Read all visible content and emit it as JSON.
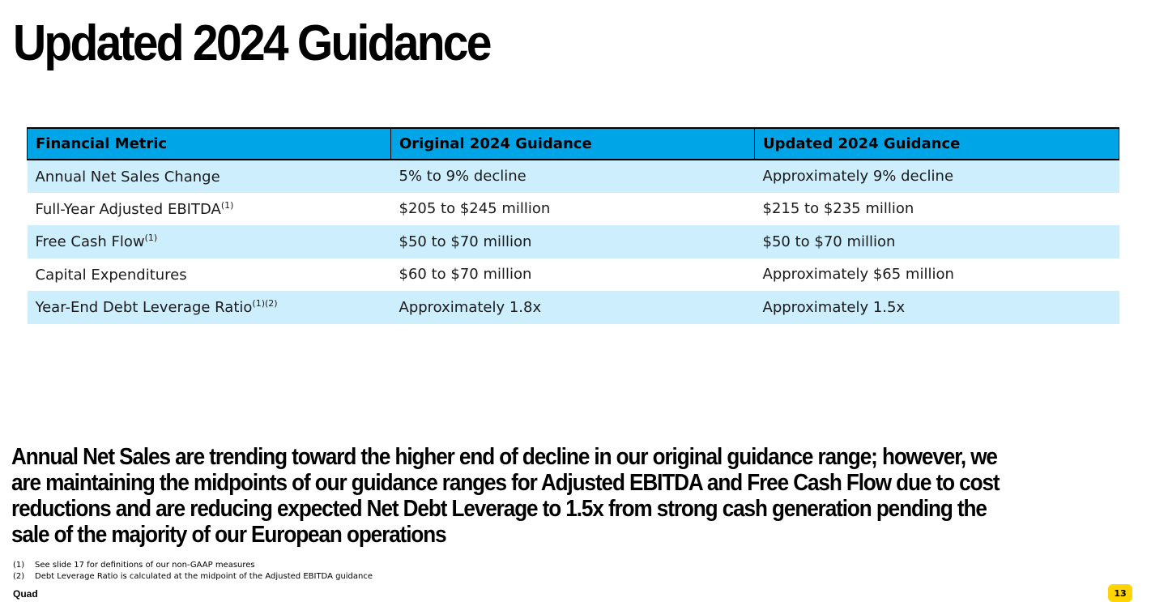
{
  "slide": {
    "title": "Updated 2024 Guidance",
    "page_number": "13",
    "brand": "Quad"
  },
  "table": {
    "headers": [
      "Financial Metric",
      "Original 2024 Guidance",
      "Updated 2024 Guidance"
    ],
    "rows": [
      {
        "metric": "Annual Net Sales Change",
        "sup": "",
        "original": "5% to 9% decline",
        "updated": "Approximately 9% decline"
      },
      {
        "metric": "Full-Year Adjusted EBITDA",
        "sup": "(1)",
        "original": "$205 to $245 million",
        "updated": "$215 to $235 million"
      },
      {
        "metric": "Free Cash Flow",
        "sup": "(1)",
        "original": "$50 to $70 million",
        "updated": "$50 to $70 million"
      },
      {
        "metric": "Capital Expenditures",
        "sup": "",
        "original": "$60 to $70 million",
        "updated": "Approximately $65 million"
      },
      {
        "metric": "Year-End Debt Leverage Ratio",
        "sup": "(1)(2)",
        "original": "Approximately 1.8x",
        "updated": "Approximately 1.5x"
      }
    ]
  },
  "statement": {
    "line1": "Annual Net Sales are trending toward the higher end of decline in our original guidance range; however, we",
    "line2": "are maintaining the midpoints of our guidance ranges for Adjusted EBITDA and Free Cash Flow due to cost",
    "line3": "reductions and are reducing expected Net Debt Leverage to 1.5x from strong cash generation pending the",
    "line4": "sale of the majority of our European operations"
  },
  "footnotes": [
    {
      "num": "(1)",
      "text": "See slide 17 for definitions of our non-GAAP measures"
    },
    {
      "num": "(2)",
      "text": "Debt Leverage Ratio is calculated at the midpoint of the Adjusted EBITDA guidance"
    }
  ],
  "colors": {
    "header_bg": "#00a5e8",
    "row_alt_bg": "#cdeefc",
    "page_badge": "#ffd400"
  }
}
